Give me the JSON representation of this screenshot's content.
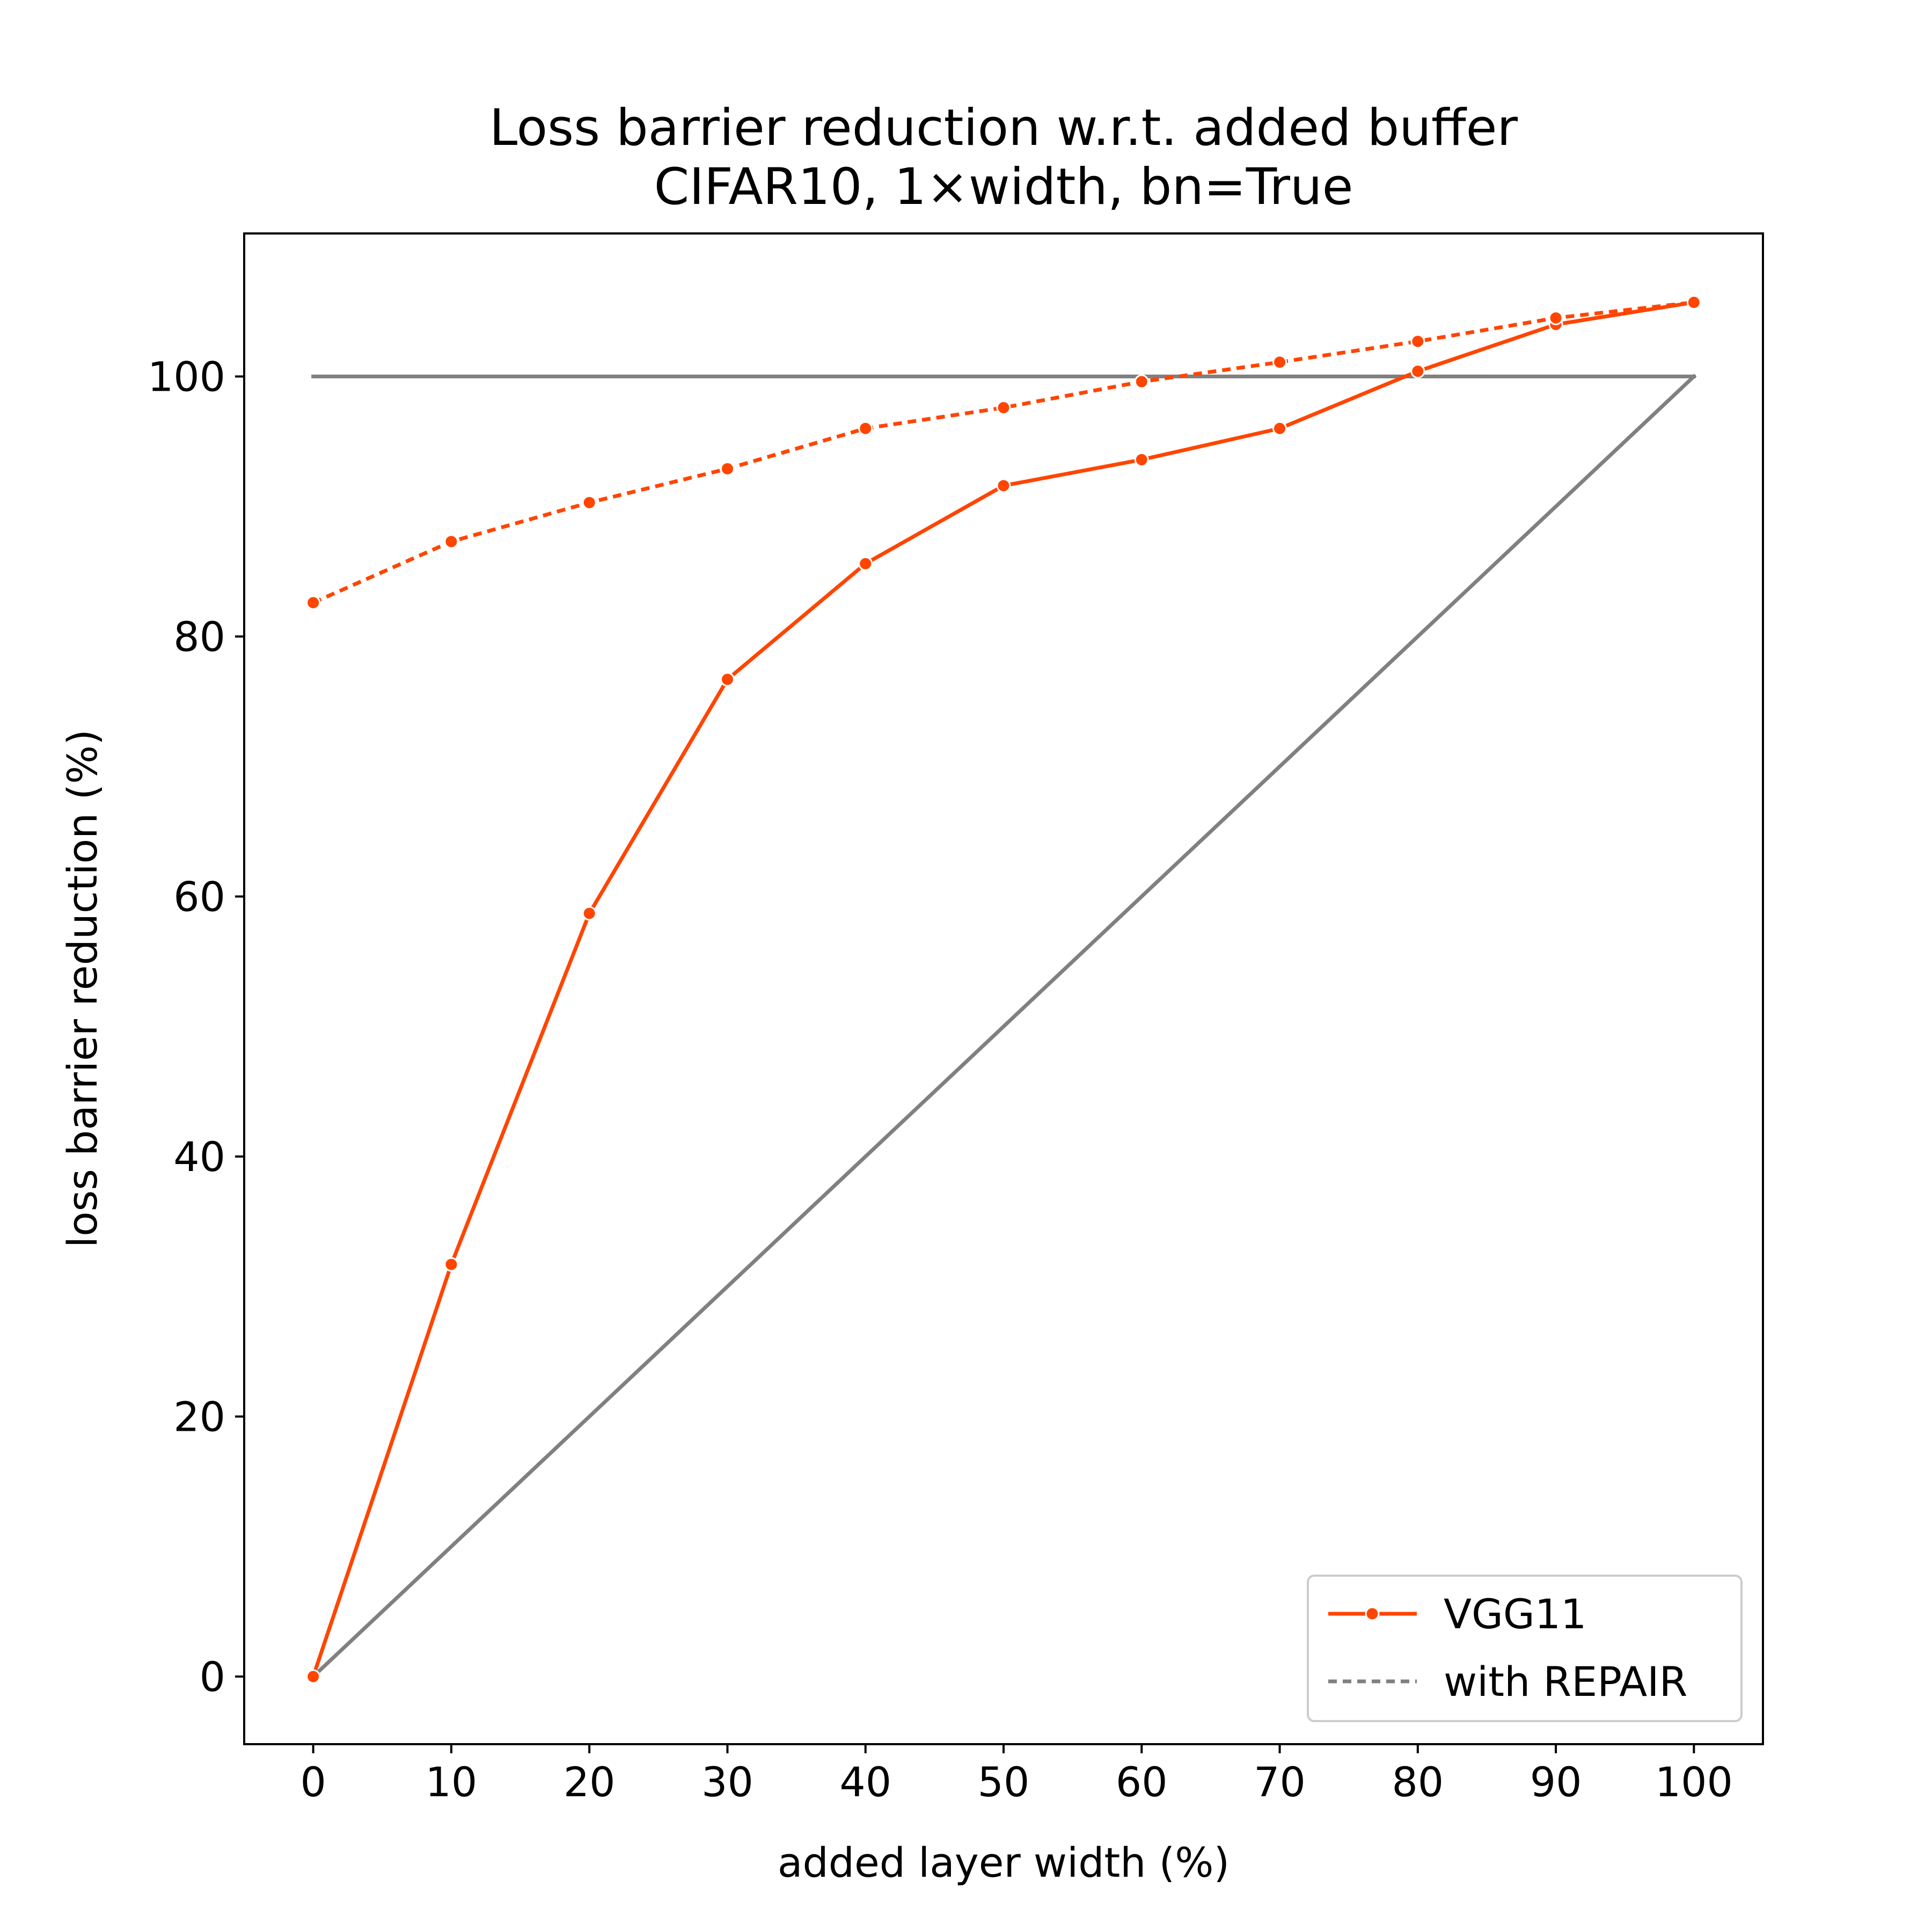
{
  "chart_data": {
    "type": "line",
    "title": "Loss barrier reduction w.r.t. added buffer",
    "subtitle": "CIFAR10, 1×width, bn=True",
    "xlabel": "added layer width (%)",
    "ylabel": "loss barrier reduction (%)",
    "xlim": [
      -5,
      105
    ],
    "ylim": [
      -5.2,
      111
    ],
    "xticks": [
      0,
      10,
      20,
      30,
      40,
      50,
      60,
      70,
      80,
      90,
      100
    ],
    "yticks": [
      0,
      20,
      40,
      60,
      80,
      100
    ],
    "grid": false,
    "legend_position": "lower-right",
    "x": [
      0,
      10,
      20,
      30,
      40,
      50,
      60,
      70,
      80,
      90,
      100
    ],
    "series": [
      {
        "name": "VGG11",
        "style": "solid",
        "marker": "circle",
        "color": "#FF4500",
        "values": [
          0,
          31.7,
          58.7,
          76.7,
          85.6,
          91.6,
          93.6,
          96.0,
          100.4,
          104.0,
          105.7
        ]
      },
      {
        "name": "with REPAIR",
        "style": "dotted",
        "marker": "circle",
        "color": "#FF4500",
        "legend_color": "#808080",
        "values": [
          82.6,
          87.3,
          90.3,
          92.9,
          96.0,
          97.6,
          99.6,
          101.1,
          102.7,
          104.5,
          105.7
        ]
      }
    ],
    "reference_lines": [
      {
        "x": [
          0,
          100
        ],
        "y": [
          100,
          100
        ],
        "color": "#808080"
      },
      {
        "x": [
          0,
          100
        ],
        "y": [
          0,
          100
        ],
        "color": "#808080"
      }
    ]
  }
}
